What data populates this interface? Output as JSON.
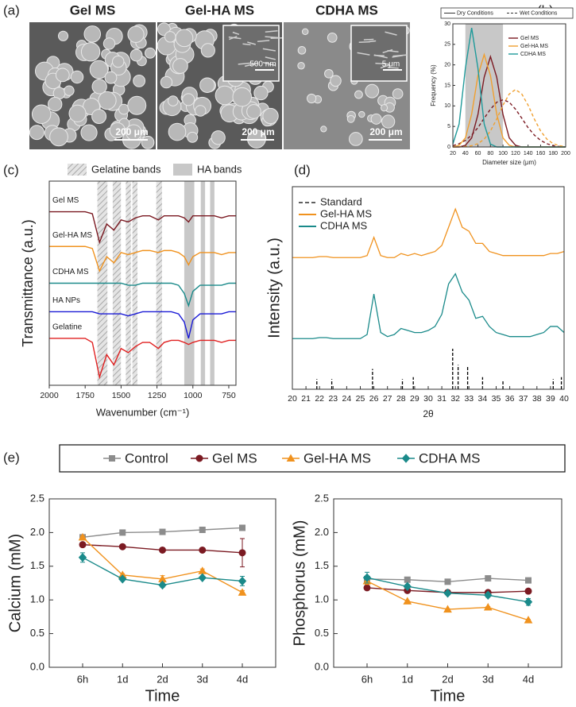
{
  "figure_a": {
    "label": "(a)",
    "images": [
      {
        "title": "Gel MS",
        "scale_bar": "200 μm"
      },
      {
        "title": "Gel-HA MS",
        "scale_bar": "200 μm",
        "inset_scale_bar": "500 nm"
      },
      {
        "title": "CDHA MS",
        "scale_bar": "200 μm",
        "inset_scale_bar": "5 μm"
      }
    ]
  },
  "chart_data": [
    {
      "type": "line",
      "panel_label": "(b)",
      "xlabel": "Diameter size (μm)",
      "ylabel": "Frequency (%)",
      "line_styles": [
        "Dry Conditions",
        "Wet Conditions"
      ],
      "shaded_range": [
        40,
        100
      ],
      "x": [
        20,
        30,
        40,
        50,
        60,
        70,
        80,
        90,
        100,
        110,
        120,
        130,
        140,
        150,
        160,
        170,
        180,
        190,
        200
      ],
      "xlim": [
        20,
        200
      ],
      "xticks": [
        20,
        40,
        60,
        80,
        100,
        120,
        140,
        160,
        180,
        200
      ],
      "ylim": [
        0,
        30
      ],
      "yticks": [
        0,
        5,
        10,
        15,
        20,
        25,
        30
      ],
      "series": [
        {
          "name": "Gel MS",
          "color": "#7b1a22",
          "values": [
            0,
            0,
            0.4,
            2.2,
            7.9,
            17,
            22,
            17,
            7.9,
            2.2,
            0.4,
            0,
            0,
            0,
            0,
            0,
            0,
            0,
            0
          ],
          "wet_values": [
            0.3,
            0.8,
            1.6,
            2.9,
            4.7,
            7,
            9.2,
            10.9,
            11.5,
            10.9,
            9.2,
            7,
            4.7,
            2.9,
            1.6,
            0.8,
            0.3,
            0.1,
            0
          ]
        },
        {
          "name": "Gel-HA MS",
          "color": "#f0a030",
          "values": [
            0,
            0.4,
            2.2,
            8,
            17.4,
            22.5,
            17.4,
            8,
            2.2,
            0.4,
            0,
            0,
            0,
            0,
            0,
            0,
            0,
            0,
            0
          ],
          "wet_values": [
            0,
            0,
            0.1,
            0.3,
            0.8,
            1.9,
            3.9,
            6.8,
            10.2,
            12.9,
            14,
            12.9,
            10.2,
            6.8,
            3.9,
            1.9,
            0.8,
            0.3,
            0.1
          ]
        },
        {
          "name": "CDHA MS",
          "color": "#1f9a9a",
          "values": [
            0.7,
            5.6,
            19.2,
            29,
            19.2,
            5.6,
            0.7,
            0,
            0,
            0,
            0,
            0,
            0,
            0,
            0,
            0,
            0,
            0,
            0
          ]
        }
      ]
    },
    {
      "type": "line",
      "panel_label": "(c)",
      "xlabel": "Wavenumber (cm⁻¹)",
      "ylabel": "Transmittance (a.u.)",
      "bands": [
        {
          "name": "Gelatine bands",
          "ranges": [
            [
              1665,
              1595
            ],
            [
              1558,
              1501
            ],
            [
              1467,
              1432
            ],
            [
              1421,
              1386
            ],
            [
              1255,
              1215
            ]
          ]
        },
        {
          "name": "HA bands",
          "ranges": [
            [
              1060,
              990
            ],
            [
              945,
              915
            ],
            [
              880,
              850
            ]
          ]
        }
      ],
      "x": [
        2000,
        1900,
        1800,
        1750,
        1700,
        1650,
        1600,
        1550,
        1500,
        1450,
        1400,
        1350,
        1300,
        1240,
        1200,
        1150,
        1100,
        1060,
        1030,
        1000,
        950,
        900,
        850,
        800,
        750,
        700
      ],
      "xlim": [
        2000,
        700
      ],
      "xticks": [
        2000,
        1750,
        1500,
        1250,
        1000,
        750
      ],
      "ylim": [
        0,
        10
      ],
      "series": [
        {
          "name": "Gel MS",
          "color": "#7b1a22",
          "values": [
            8.5,
            8.5,
            8.5,
            8.5,
            8.4,
            7.0,
            7.9,
            7.6,
            8.1,
            8.0,
            8.2,
            8.3,
            8.3,
            8.1,
            8.3,
            8.3,
            8.3,
            8.2,
            8.0,
            8.3,
            8.3,
            8.3,
            8.3,
            8.2,
            8.3,
            8.3
          ]
        },
        {
          "name": "Gel-HA MS",
          "color": "#f0921e",
          "values": [
            6.8,
            6.8,
            6.8,
            6.8,
            6.7,
            5.6,
            6.3,
            6.0,
            6.5,
            6.4,
            6.5,
            6.6,
            6.6,
            6.5,
            6.6,
            6.6,
            6.5,
            6.3,
            5.9,
            6.3,
            6.5,
            6.5,
            6.5,
            6.4,
            6.5,
            6.5
          ]
        },
        {
          "name": "CDHA MS",
          "color": "#1a8a8a",
          "values": [
            5.0,
            5.0,
            5.0,
            5.0,
            5.0,
            5.0,
            5.0,
            5.0,
            5.0,
            4.9,
            4.9,
            5.0,
            5.0,
            5.0,
            5.0,
            5.0,
            4.9,
            4.5,
            3.9,
            4.6,
            4.9,
            4.9,
            4.9,
            4.9,
            5.0,
            5.0
          ]
        },
        {
          "name": "HA NPs",
          "color": "#1a1ad6",
          "values": [
            3.6,
            3.6,
            3.6,
            3.6,
            3.6,
            3.5,
            3.5,
            3.5,
            3.5,
            3.4,
            3.5,
            3.6,
            3.6,
            3.6,
            3.6,
            3.6,
            3.5,
            3.1,
            2.3,
            3.2,
            3.5,
            3.5,
            3.5,
            3.5,
            3.6,
            3.6
          ]
        },
        {
          "name": "Gelatine",
          "color": "#e02020",
          "values": [
            2.3,
            2.3,
            2.3,
            2.3,
            2.1,
            0.4,
            1.5,
            1.0,
            1.8,
            1.6,
            1.9,
            2.1,
            2.1,
            1.8,
            2.1,
            2.2,
            2.2,
            2.1,
            2.0,
            2.1,
            2.2,
            2.2,
            2.2,
            2.1,
            2.2,
            2.2
          ]
        }
      ]
    },
    {
      "type": "line",
      "panel_label": "(d)",
      "xlabel": "2θ",
      "ylabel": "Intensity (a.u.)",
      "standard": {
        "name": "Standard",
        "x": [
          21.8,
          22.9,
          25.9,
          28.1,
          28.9,
          31.8,
          32.2,
          32.9,
          34.0,
          35.5,
          39.2,
          39.8
        ],
        "values": [
          5,
          5,
          10,
          5,
          6,
          20,
          12,
          11,
          6,
          4,
          5,
          6
        ]
      },
      "x": [
        20,
        20.5,
        21,
        21.5,
        22,
        22.5,
        23,
        23.5,
        24,
        24.5,
        25,
        25.5,
        26,
        26.5,
        27,
        27.5,
        28,
        28.5,
        29,
        29.5,
        30,
        30.5,
        31,
        31.5,
        32,
        32.5,
        33,
        33.5,
        34,
        34.5,
        35,
        35.5,
        36,
        36.5,
        37,
        37.5,
        38,
        38.5,
        39,
        39.5,
        40
      ],
      "xlim": [
        20,
        40
      ],
      "xticks": [
        20,
        21,
        22,
        23,
        24,
        25,
        26,
        27,
        28,
        29,
        30,
        31,
        32,
        33,
        34,
        35,
        36,
        37,
        38,
        39,
        40
      ],
      "ylim": [
        0,
        100
      ],
      "series": [
        {
          "name": "Gel-HA MS",
          "color": "#f0921e",
          "values": [
            65,
            65,
            65,
            65,
            65.5,
            65.5,
            65,
            65,
            65,
            65,
            65,
            66,
            75,
            66,
            65,
            65,
            67,
            66,
            67,
            66,
            67,
            68,
            71,
            80,
            89,
            80,
            78,
            72,
            72,
            68,
            67,
            66,
            66,
            66,
            66,
            66,
            66,
            66,
            67,
            67,
            68
          ]
        },
        {
          "name": "CDHA MS",
          "color": "#1a8a8a",
          "values": [
            25,
            25,
            25,
            25,
            25.5,
            25.5,
            25,
            25,
            25,
            25,
            25,
            27,
            47,
            28,
            26,
            27,
            30,
            29,
            28,
            28,
            29,
            31,
            37,
            52,
            57,
            48,
            44,
            35,
            36,
            31,
            28,
            27,
            26,
            26,
            26,
            26,
            27,
            28,
            31,
            31,
            28
          ]
        }
      ]
    },
    {
      "type": "line",
      "panel_label": "(e)",
      "categories": [
        "6h",
        "1d",
        "2d",
        "3d",
        "4d"
      ],
      "series": [
        {
          "name": "Control",
          "color": "#8c8c8c",
          "marker": "square",
          "values": [
            [
              1.93,
              2.0,
              2.01,
              2.04,
              2.07
            ],
            [
              1.31,
              1.3,
              1.27,
              1.32,
              1.29
            ]
          ],
          "errors": [
            [
              0.01,
              0.01,
              0.01,
              0.01,
              0.01
            ],
            [
              0.02,
              0.01,
              0.01,
              0.01,
              0.01
            ]
          ]
        },
        {
          "name": "Gel MS",
          "color": "#7b1a22",
          "marker": "circle",
          "values": [
            [
              1.82,
              1.79,
              1.74,
              1.74,
              1.7
            ],
            [
              1.18,
              1.14,
              1.11,
              1.11,
              1.13
            ]
          ],
          "errors": [
            [
              0.01,
              0.01,
              0.01,
              0.01,
              0.21
            ],
            [
              0.01,
              0.01,
              0.01,
              0.01,
              0.01
            ]
          ]
        },
        {
          "name": "Gel-HA MS",
          "color": "#f0921e",
          "marker": "triangle",
          "values": [
            [
              1.93,
              1.37,
              1.31,
              1.43,
              1.11
            ],
            [
              1.28,
              0.98,
              0.86,
              0.89,
              0.7
            ]
          ],
          "errors": [
            [
              0.02,
              0.02,
              0.05,
              0.03,
              0.03
            ],
            [
              0.05,
              0.01,
              0.01,
              0.01,
              0.01
            ]
          ]
        },
        {
          "name": "CDHA MS",
          "color": "#1a8a8a",
          "marker": "diamond",
          "values": [
            [
              1.63,
              1.31,
              1.22,
              1.33,
              1.28
            ],
            [
              1.33,
              1.2,
              1.1,
              1.07,
              0.97
            ]
          ],
          "errors": [
            [
              0.07,
              0.02,
              0.03,
              0.02,
              0.07
            ],
            [
              0.08,
              0.03,
              0.02,
              0.03,
              0.05
            ]
          ]
        }
      ],
      "panels": [
        {
          "ylabel": "Calcium (mM)",
          "xlabel": "Time",
          "ylim": [
            0,
            2.5
          ],
          "yticks": [
            {
              "value": 0,
              "label": "0.0"
            },
            0.5,
            {
              "value": 1,
              "label": "1.0"
            },
            1.5,
            {
              "value": 2,
              "label": "2.0"
            },
            2.5
          ]
        },
        {
          "ylabel": "Phosphorus (mM)",
          "xlabel": "Time",
          "ylim": [
            0,
            2.5
          ],
          "yticks": [
            {
              "value": 0,
              "label": "0.0"
            },
            0.5,
            {
              "value": 1,
              "label": "1.0"
            },
            1.5,
            {
              "value": 2,
              "label": "2.0"
            },
            2.5
          ]
        }
      ]
    }
  ]
}
